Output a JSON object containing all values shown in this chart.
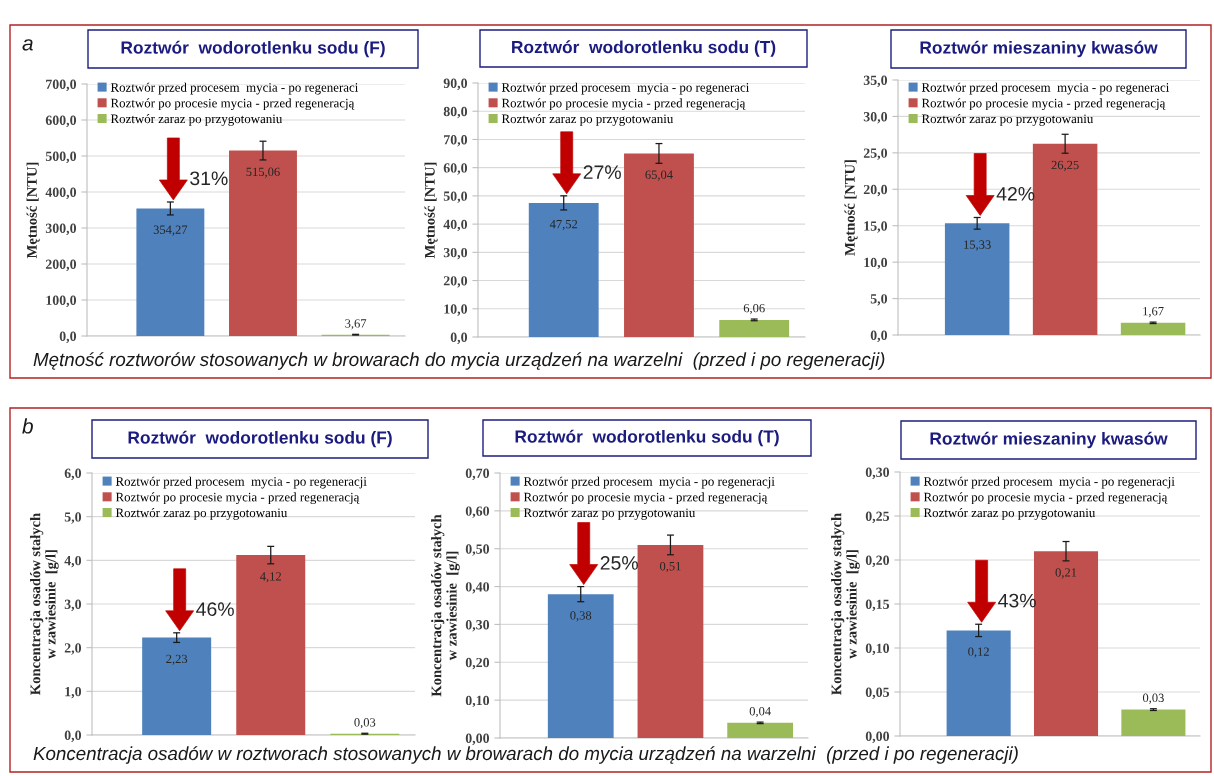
{
  "chart_data": [
    {
      "type": "bar",
      "title": "Roztwór  wodorotlenku sodu (F)",
      "ylabel": "Mętność [NTU]",
      "categories": [
        null
      ],
      "series": [
        {
          "name": "Roztwór przed procesem  mycia - po regeneraci",
          "color": "#4f81bd",
          "values": [
            354.27
          ],
          "errors": [
            18
          ],
          "value_labels": [
            "354,27"
          ]
        },
        {
          "name": "Roztwór po procesie mycia - przed regeneracją",
          "color": "#c0504d",
          "values": [
            515.06
          ],
          "errors": [
            26
          ],
          "value_labels": [
            "515,06"
          ]
        },
        {
          "name": "Roztwór zaraz po przygotowaniu",
          "color": "#9bbb59",
          "values": [
            3.67
          ],
          "errors": [
            1
          ],
          "value_labels": [
            "3,67"
          ]
        }
      ],
      "ylim": [
        0,
        700
      ],
      "yticks": [
        {
          "value": 0,
          "label": "0,0"
        },
        {
          "value": 100,
          "label": "100,0"
        },
        {
          "value": 200,
          "label": "200,0"
        },
        {
          "value": 300,
          "label": "300,0"
        },
        {
          "value": 400,
          "label": "400,0"
        },
        {
          "value": 500,
          "label": "500,0"
        },
        {
          "value": 600,
          "label": "600,0"
        },
        {
          "value": 700,
          "label": "700,0"
        }
      ],
      "grid": "y",
      "legend": "top left",
      "tick_labels": "y",
      "annotations": [
        "31%",
        "a",
        "Mętność roztworów stosowanych w browarach do mycia urządzeń na warzelni  (przed i po regeneracji)"
      ]
    },
    {
      "type": "bar",
      "title": "Roztwór  wodorotlenku sodu (T)",
      "ylabel": "Mętność [NTU]",
      "categories": [
        null
      ],
      "series": [
        {
          "name": "Roztwór przed procesem  mycia - po regeneraci",
          "color": "#4f81bd",
          "values": [
            47.52
          ],
          "errors": [
            2.5
          ],
          "value_labels": [
            "47,52"
          ]
        },
        {
          "name": "Roztwór po procesie mycia - przed regeneracją",
          "color": "#c0504d",
          "values": [
            65.04
          ],
          "errors": [
            3.5
          ],
          "value_labels": [
            "65,04"
          ]
        },
        {
          "name": "Roztwór zaraz po przygotowaniu",
          "color": "#9bbb59",
          "values": [
            6.06
          ],
          "errors": [
            0.3
          ],
          "value_labels": [
            "6,06"
          ]
        }
      ],
      "ylim": [
        0,
        90
      ],
      "yticks": [
        {
          "value": 0,
          "label": "0,0"
        },
        {
          "value": 10,
          "label": "10,0"
        },
        {
          "value": 20,
          "label": "20,0"
        },
        {
          "value": 30,
          "label": "30,0"
        },
        {
          "value": 40,
          "label": "40,0"
        },
        {
          "value": 50,
          "label": "50,0"
        },
        {
          "value": 60,
          "label": "60,0"
        },
        {
          "value": 70,
          "label": "70,0"
        },
        {
          "value": 80,
          "label": "80,0"
        },
        {
          "value": 90,
          "label": "90,0"
        }
      ],
      "grid": "y",
      "legend": "top left",
      "tick_labels": "y",
      "annotations": [
        "27%"
      ]
    },
    {
      "type": "bar",
      "title": "Roztwór mieszaniny kwasów",
      "ylabel": "Mętność [NTU]",
      "categories": [
        null
      ],
      "series": [
        {
          "name": "Roztwór przed procesem  mycia - po regeneraci",
          "color": "#4f81bd",
          "values": [
            15.33
          ],
          "errors": [
            0.8
          ],
          "value_labels": [
            "15,33"
          ]
        },
        {
          "name": "Roztwór po procesie mycia - przed regeneracją",
          "color": "#c0504d",
          "values": [
            26.25
          ],
          "errors": [
            1.3
          ],
          "value_labels": [
            "26,25"
          ]
        },
        {
          "name": "Roztwór zaraz po przygotowaniu",
          "color": "#9bbb59",
          "values": [
            1.67
          ],
          "errors": [
            0.1
          ],
          "value_labels": [
            "1,67"
          ]
        }
      ],
      "ylim": [
        0,
        35
      ],
      "yticks": [
        {
          "value": 0,
          "label": "0,0"
        },
        {
          "value": 5,
          "label": "5,0"
        },
        {
          "value": 10,
          "label": "10,0"
        },
        {
          "value": 15,
          "label": "15,0"
        },
        {
          "value": 20,
          "label": "20,0"
        },
        {
          "value": 25,
          "label": "25,0"
        },
        {
          "value": 30,
          "label": "30,0"
        },
        {
          "value": 35,
          "label": "35,0"
        }
      ],
      "grid": "y",
      "legend": "top left",
      "tick_labels": "y",
      "annotations": [
        "42%"
      ]
    },
    {
      "type": "bar",
      "title": "Roztwór  wodorotlenku sodu (F)",
      "ylabel": "Koncentracja osadów stałych\nw zawiesinie  [g/l]",
      "categories": [
        null
      ],
      "series": [
        {
          "name": "Roztwór przed procesem  mycia - po regeneracji",
          "color": "#4f81bd",
          "values": [
            2.23
          ],
          "errors": [
            0.11
          ],
          "value_labels": [
            "2,23"
          ]
        },
        {
          "name": "Roztwór po procesie mycia - przed regeneracją",
          "color": "#c0504d",
          "values": [
            4.12
          ],
          "errors": [
            0.2
          ],
          "value_labels": [
            "4,12"
          ]
        },
        {
          "name": "Roztwór zaraz po przygotowaniu",
          "color": "#9bbb59",
          "values": [
            0.03
          ],
          "errors": [
            0.01
          ],
          "value_labels": [
            "0,03"
          ]
        }
      ],
      "ylim": [
        0,
        6
      ],
      "yticks": [
        {
          "value": 0,
          "label": "0,0"
        },
        {
          "value": 1,
          "label": "1,0"
        },
        {
          "value": 2,
          "label": "2,0"
        },
        {
          "value": 3,
          "label": "3,0"
        },
        {
          "value": 4,
          "label": "4,0"
        },
        {
          "value": 5,
          "label": "5,0"
        },
        {
          "value": 6,
          "label": "6,0"
        }
      ],
      "grid": "y",
      "legend": "top left",
      "tick_labels": "y",
      "annotations": [
        "46%",
        "b",
        "Koncentracja osadów w roztworach stosowanych w browarach do mycia urządzeń na warzelni  (przed i po regeneracji)"
      ]
    },
    {
      "type": "bar",
      "title": "Roztwór  wodorotlenku sodu (T)",
      "ylabel": "Koncentracja osadów stałych\nw zawiesinie  [g/l]",
      "categories": [
        null
      ],
      "series": [
        {
          "name": "Roztwór przed procesem  mycia - po regeneracji",
          "color": "#4f81bd",
          "values": [
            0.38
          ],
          "errors": [
            0.02
          ],
          "value_labels": [
            "0,38"
          ]
        },
        {
          "name": "Roztwór po procesie mycia - przed regeneracją",
          "color": "#c0504d",
          "values": [
            0.51
          ],
          "errors": [
            0.026
          ],
          "value_labels": [
            "0,51"
          ]
        },
        {
          "name": "Roztwór zaraz po przygotowaniu",
          "color": "#9bbb59",
          "values": [
            0.04
          ],
          "errors": [
            0.002
          ],
          "value_labels": [
            "0,04"
          ]
        }
      ],
      "ylim": [
        0,
        0.7
      ],
      "yticks": [
        {
          "value": 0,
          "label": "0,00"
        },
        {
          "value": 0.1,
          "label": "0,10"
        },
        {
          "value": 0.2,
          "label": "0,20"
        },
        {
          "value": 0.3,
          "label": "0,30"
        },
        {
          "value": 0.4,
          "label": "0,40"
        },
        {
          "value": 0.5,
          "label": "0,50"
        },
        {
          "value": 0.6,
          "label": "0,60"
        },
        {
          "value": 0.7,
          "label": "0,70"
        }
      ],
      "grid": "y",
      "legend": "top left",
      "tick_labels": "y",
      "annotations": [
        "25%"
      ]
    },
    {
      "type": "bar",
      "title": "Roztwór mieszaniny kwasów",
      "ylabel": "Koncentracja osadów stałych\nw zawiesinie  [g/l]",
      "categories": [
        null
      ],
      "series": [
        {
          "name": "Roztwór przed procesem  mycia - po regeneracji",
          "color": "#4f81bd",
          "values": [
            0.12
          ],
          "errors": [
            0.007
          ],
          "value_labels": [
            "0,12"
          ]
        },
        {
          "name": "Roztwór po procesie mycia - przed regeneracją",
          "color": "#c0504d",
          "values": [
            0.21
          ],
          "errors": [
            0.011
          ],
          "value_labels": [
            "0,21"
          ]
        },
        {
          "name": "Roztwór zaraz po przygotowaniu",
          "color": "#9bbb59",
          "values": [
            0.03
          ],
          "errors": [
            0.001
          ],
          "value_labels": [
            "0,03"
          ]
        }
      ],
      "ylim": [
        0,
        0.3
      ],
      "yticks": [
        {
          "value": 0,
          "label": "0,00"
        },
        {
          "value": 0.05,
          "label": "0,05"
        },
        {
          "value": 0.1,
          "label": "0,10"
        },
        {
          "value": 0.15,
          "label": "0,15"
        },
        {
          "value": 0.2,
          "label": "0,20"
        },
        {
          "value": 0.25,
          "label": "0,25"
        },
        {
          "value": 0.3,
          "label": "0,30"
        }
      ],
      "grid": "y",
      "legend": "top left",
      "tick_labels": "y",
      "annotations": [
        "43%"
      ]
    }
  ]
}
